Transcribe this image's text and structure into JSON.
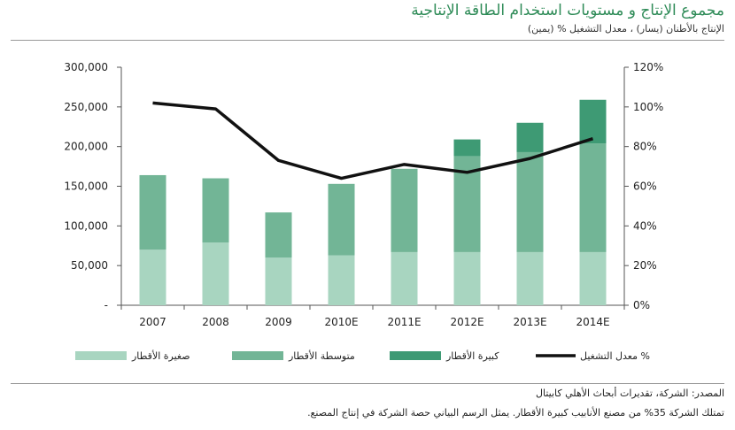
{
  "header": {
    "title": "مجموع الإنتاج و مستويات استخدام الطاقة الإنتاجية",
    "subtitle": "الإنتاج بالأطنان (يسار) ، معدل التشغيل % (يمين)"
  },
  "footer": {
    "source": "المصدر: الشركة، تقديرات أبحاث الأهلي كابيتال",
    "note": "تمتلك الشركة 35% من مصنع الأنابيب كبيرة الأقطار. يمثل الرسم البياني حصة الشركة في إنتاج المصنع."
  },
  "colors": {
    "small": "#a8d5c0",
    "medium": "#72b596",
    "large": "#3e9a74",
    "line": "#111111",
    "title": "#2e8b57"
  },
  "chart_data": {
    "type": "bar",
    "stacked": true,
    "categories": [
      "2007",
      "2008",
      "2009",
      "2010E",
      "2011E",
      "2012E",
      "2013E",
      "2014E"
    ],
    "series": [
      {
        "name": "صغيرة الأقطار",
        "color": "#a8d5c0",
        "values": [
          70000,
          79000,
          60000,
          63000,
          67000,
          67000,
          67000,
          67000
        ]
      },
      {
        "name": "متوسطة الأقطار",
        "color": "#72b596",
        "values": [
          94000,
          81000,
          57000,
          90000,
          105000,
          121000,
          126000,
          137000
        ]
      },
      {
        "name": "كبيرة الأقطار",
        "color": "#3e9a74",
        "values": [
          0,
          0,
          0,
          0,
          0,
          21000,
          37000,
          55000
        ]
      }
    ],
    "line_series": {
      "name": "معدل التشغيل %",
      "color": "#111111",
      "axis": "right",
      "values": [
        102,
        99,
        73,
        64,
        71,
        67,
        74,
        84
      ]
    },
    "left_axis": {
      "ylim": [
        0,
        300000
      ],
      "ticks": [
        "-",
        "50,000",
        "100,000",
        "150,000",
        "200,000",
        "250,000",
        "300,000"
      ]
    },
    "right_axis": {
      "ylim": [
        0,
        120
      ],
      "ticks": [
        "0%",
        "20%",
        "40%",
        "60%",
        "80%",
        "100%",
        "120%"
      ]
    },
    "grid": false,
    "legend_position": "bottom"
  }
}
